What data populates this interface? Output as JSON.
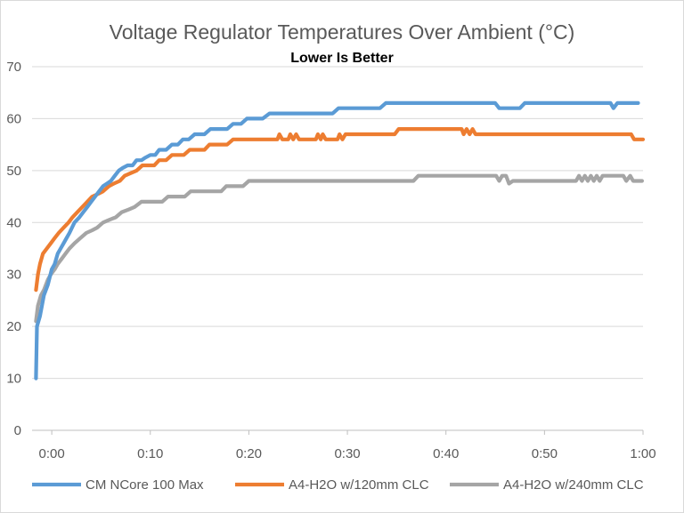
{
  "chart_data": {
    "type": "line",
    "title": "Voltage Regulator Temperatures Over Ambient (°C)",
    "subtitle": "Lower Is Better",
    "xlabel": "",
    "ylabel": "",
    "ylim": [
      0,
      70
    ],
    "yticks": [
      0,
      10,
      20,
      30,
      40,
      50,
      60,
      70
    ],
    "xlim_minutes": [
      -2,
      60
    ],
    "xticks": [
      {
        "label": "0:00",
        "minutes": 0
      },
      {
        "label": "0:10",
        "minutes": 10
      },
      {
        "label": "0:20",
        "minutes": 20
      },
      {
        "label": "0:30",
        "minutes": 30
      },
      {
        "label": "0:40",
        "minutes": 40
      },
      {
        "label": "0:50",
        "minutes": 50
      },
      {
        "label": "1:00",
        "minutes": 60
      }
    ],
    "grid": true,
    "legend_position": "bottom",
    "series": [
      {
        "name": "CM NCore 100 Max",
        "color": "#5b9bd5",
        "points": [
          [
            -1.6,
            10
          ],
          [
            -1.5,
            20
          ],
          [
            -1.2,
            22
          ],
          [
            -0.8,
            26
          ],
          [
            -0.4,
            28
          ],
          [
            0,
            31
          ],
          [
            0.3,
            32
          ],
          [
            0.6,
            34
          ],
          [
            0.9,
            35
          ],
          [
            1.2,
            36
          ],
          [
            1.5,
            37
          ],
          [
            1.8,
            38
          ],
          [
            2.3,
            40
          ],
          [
            2.8,
            41
          ],
          [
            3.2,
            42
          ],
          [
            3.6,
            43
          ],
          [
            4.0,
            44
          ],
          [
            4.4,
            45
          ],
          [
            4.8,
            46
          ],
          [
            5.2,
            47
          ],
          [
            5.6,
            47.5
          ],
          [
            6.0,
            48
          ],
          [
            6.4,
            49
          ],
          [
            6.8,
            50
          ],
          [
            7.2,
            50.5
          ],
          [
            7.7,
            51
          ],
          [
            8.2,
            51
          ],
          [
            8.6,
            52
          ],
          [
            9.1,
            52
          ],
          [
            9.5,
            52.5
          ],
          [
            10.0,
            53
          ],
          [
            10.5,
            53
          ],
          [
            10.9,
            54
          ],
          [
            11.6,
            54
          ],
          [
            12.2,
            55
          ],
          [
            12.8,
            55
          ],
          [
            13.3,
            56
          ],
          [
            13.9,
            56
          ],
          [
            14.5,
            57
          ],
          [
            15.5,
            57
          ],
          [
            16.1,
            58
          ],
          [
            17.8,
            58
          ],
          [
            18.4,
            59
          ],
          [
            19.2,
            59
          ],
          [
            19.8,
            60
          ],
          [
            21.4,
            60
          ],
          [
            22.1,
            61
          ],
          [
            28.5,
            61
          ],
          [
            29.1,
            62
          ],
          [
            33.3,
            62
          ],
          [
            33.9,
            63
          ],
          [
            45.0,
            63
          ],
          [
            45.4,
            62
          ],
          [
            47.5,
            62
          ],
          [
            48.0,
            63
          ],
          [
            56.7,
            63
          ],
          [
            57.0,
            62
          ],
          [
            57.4,
            63
          ],
          [
            59.5,
            63
          ]
        ]
      },
      {
        "name": "A4-H2O w/120mm CLC",
        "color": "#ed7d31",
        "points": [
          [
            -1.6,
            27
          ],
          [
            -1.4,
            30
          ],
          [
            -1.2,
            32
          ],
          [
            -0.9,
            34
          ],
          [
            -0.5,
            35
          ],
          [
            -0.1,
            36
          ],
          [
            0.3,
            37
          ],
          [
            0.7,
            38
          ],
          [
            1.2,
            39
          ],
          [
            1.7,
            40
          ],
          [
            2.1,
            41
          ],
          [
            2.6,
            42
          ],
          [
            3.1,
            43
          ],
          [
            3.6,
            44
          ],
          [
            4.1,
            45
          ],
          [
            4.7,
            45.5
          ],
          [
            5.2,
            46
          ],
          [
            5.8,
            47
          ],
          [
            6.3,
            47.5
          ],
          [
            6.9,
            48
          ],
          [
            7.4,
            49
          ],
          [
            8.0,
            49.5
          ],
          [
            8.6,
            50
          ],
          [
            9.2,
            51
          ],
          [
            10.4,
            51
          ],
          [
            10.9,
            52
          ],
          [
            11.6,
            52
          ],
          [
            12.2,
            53
          ],
          [
            13.4,
            53
          ],
          [
            14.0,
            54
          ],
          [
            15.5,
            54
          ],
          [
            16.0,
            55
          ],
          [
            17.8,
            55
          ],
          [
            18.4,
            56
          ],
          [
            22.9,
            56
          ],
          [
            23.1,
            57
          ],
          [
            23.4,
            56
          ],
          [
            24.0,
            56
          ],
          [
            24.2,
            57
          ],
          [
            24.5,
            56
          ],
          [
            24.8,
            57
          ],
          [
            25.1,
            56
          ],
          [
            26.8,
            56
          ],
          [
            27.0,
            57
          ],
          [
            27.3,
            56
          ],
          [
            27.5,
            57
          ],
          [
            27.8,
            56
          ],
          [
            29.0,
            56
          ],
          [
            29.2,
            57
          ],
          [
            29.5,
            56
          ],
          [
            29.8,
            57
          ],
          [
            34.8,
            57
          ],
          [
            35.2,
            58
          ],
          [
            41.6,
            58
          ],
          [
            41.8,
            57
          ],
          [
            42.1,
            58
          ],
          [
            42.4,
            57
          ],
          [
            42.7,
            58
          ],
          [
            43.0,
            57
          ],
          [
            58.8,
            57
          ],
          [
            59.1,
            56
          ],
          [
            60.0,
            56
          ]
        ]
      },
      {
        "name": "A4-H2O w/240mm CLC",
        "color": "#a5a5a5",
        "points": [
          [
            -1.6,
            21
          ],
          [
            -1.4,
            24
          ],
          [
            -1.1,
            26
          ],
          [
            -0.8,
            27
          ],
          [
            -0.4,
            29
          ],
          [
            -0.1,
            30
          ],
          [
            0.3,
            31
          ],
          [
            0.6,
            32
          ],
          [
            1.0,
            33
          ],
          [
            1.4,
            34
          ],
          [
            1.8,
            35
          ],
          [
            2.3,
            36
          ],
          [
            2.9,
            37
          ],
          [
            3.5,
            38
          ],
          [
            4.1,
            38.5
          ],
          [
            4.6,
            39
          ],
          [
            5.2,
            40
          ],
          [
            5.8,
            40.5
          ],
          [
            6.5,
            41
          ],
          [
            7.1,
            42
          ],
          [
            7.8,
            42.5
          ],
          [
            8.4,
            43
          ],
          [
            9.1,
            44
          ],
          [
            11.2,
            44
          ],
          [
            11.8,
            45
          ],
          [
            13.5,
            45
          ],
          [
            14.1,
            46
          ],
          [
            17.2,
            46
          ],
          [
            17.7,
            47
          ],
          [
            19.4,
            47
          ],
          [
            20.0,
            48
          ],
          [
            36.7,
            48
          ],
          [
            37.2,
            49
          ],
          [
            45.1,
            49
          ],
          [
            45.4,
            48
          ],
          [
            45.7,
            49
          ],
          [
            46.1,
            49
          ],
          [
            46.4,
            47.5
          ],
          [
            46.8,
            48
          ],
          [
            53.2,
            48
          ],
          [
            53.5,
            49
          ],
          [
            53.8,
            48
          ],
          [
            54.1,
            49
          ],
          [
            54.4,
            48
          ],
          [
            54.7,
            49
          ],
          [
            55.0,
            48
          ],
          [
            55.3,
            49
          ],
          [
            55.6,
            48
          ],
          [
            55.9,
            49
          ],
          [
            58.0,
            49
          ],
          [
            58.3,
            48
          ],
          [
            58.7,
            49
          ],
          [
            59.0,
            48
          ],
          [
            59.9,
            48
          ]
        ]
      }
    ]
  }
}
